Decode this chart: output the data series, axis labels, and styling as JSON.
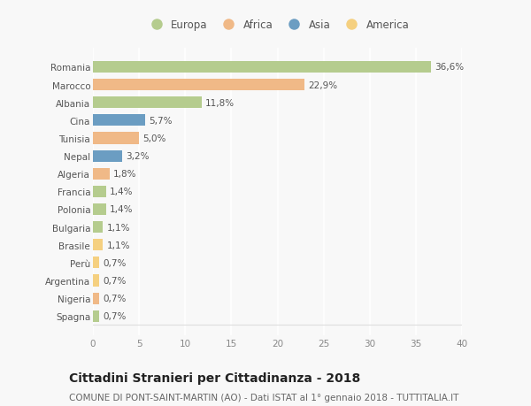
{
  "countries": [
    "Romania",
    "Marocco",
    "Albania",
    "Cina",
    "Tunisia",
    "Nepal",
    "Algeria",
    "Francia",
    "Polonia",
    "Bulgaria",
    "Brasile",
    "Perù",
    "Argentina",
    "Nigeria",
    "Spagna"
  ],
  "values": [
    36.6,
    22.9,
    11.8,
    5.7,
    5.0,
    3.2,
    1.8,
    1.4,
    1.4,
    1.1,
    1.1,
    0.7,
    0.7,
    0.7,
    0.7
  ],
  "labels": [
    "36,6%",
    "22,9%",
    "11,8%",
    "5,7%",
    "5,0%",
    "3,2%",
    "1,8%",
    "1,4%",
    "1,4%",
    "1,1%",
    "1,1%",
    "0,7%",
    "0,7%",
    "0,7%",
    "0,7%"
  ],
  "continents": [
    "Europa",
    "Africa",
    "Europa",
    "Asia",
    "Africa",
    "Asia",
    "Africa",
    "Europa",
    "Europa",
    "Europa",
    "America",
    "America",
    "America",
    "Africa",
    "Europa"
  ],
  "colors": {
    "Europa": "#b5cc8e",
    "Africa": "#f0b987",
    "Asia": "#6b9dc2",
    "America": "#f5d080"
  },
  "legend_order": [
    "Europa",
    "Africa",
    "Asia",
    "America"
  ],
  "xlim": [
    0,
    40
  ],
  "xticks": [
    0,
    5,
    10,
    15,
    20,
    25,
    30,
    35,
    40
  ],
  "title": "Cittadini Stranieri per Cittadinanza - 2018",
  "subtitle": "COMUNE DI PONT-SAINT-MARTIN (AO) - Dati ISTAT al 1° gennaio 2018 - TUTTITALIA.IT",
  "bg_color": "#f8f8f8",
  "plot_bg_color": "#f8f8f8",
  "grid_color": "#ffffff",
  "bar_height": 0.65,
  "label_fontsize": 7.5,
  "tick_fontsize": 7.5,
  "title_fontsize": 10,
  "subtitle_fontsize": 7.5,
  "legend_fontsize": 8.5
}
